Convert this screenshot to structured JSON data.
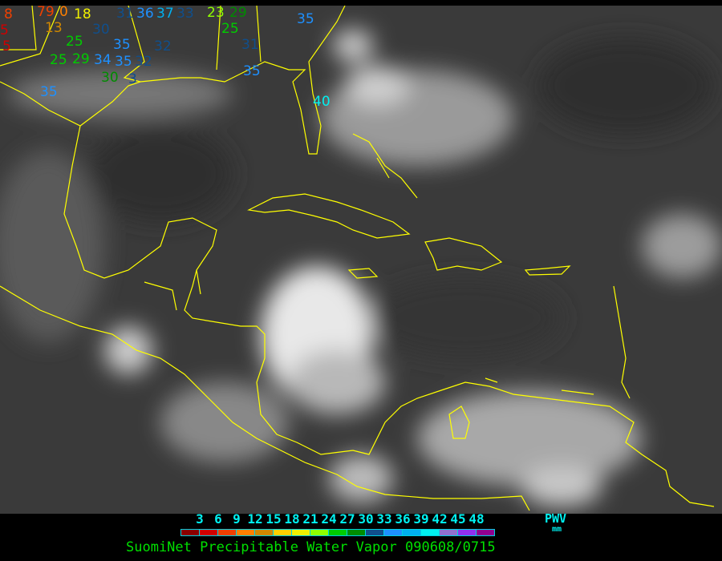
{
  "legend": {
    "values": [
      "3",
      "6",
      "9",
      "12",
      "15",
      "18",
      "21",
      "24",
      "27",
      "30",
      "33",
      "36",
      "39",
      "42",
      "45",
      "48"
    ],
    "colors": [
      "#8b0000",
      "#d00000",
      "#f04000",
      "#ff8000",
      "#d08800",
      "#ffd000",
      "#f0f000",
      "#90ff00",
      "#00cc00",
      "#008c00",
      "#104f8c",
      "#1e90ff",
      "#00b0f0",
      "#00f0f0",
      "#9070d0",
      "#9030f0",
      "#900090"
    ],
    "unit_title": "PWV",
    "unit": "mm"
  },
  "caption": "SuomiNet Precipitable Water Vapor 090608/0715",
  "coastline_color": "#ffff00",
  "stations": [
    {
      "value": "8",
      "color": "#f04000"
    },
    {
      "value": "5",
      "color": "#d00000"
    },
    {
      "value": "5",
      "color": "#d00000"
    },
    {
      "value": "79",
      "color": "#f04000"
    },
    {
      "value": "0",
      "color": "#ff8000"
    },
    {
      "value": "18",
      "color": "#f0f000"
    },
    {
      "value": "13",
      "color": "#d08800"
    },
    {
      "value": "30",
      "color": "#104f8c"
    },
    {
      "value": "25",
      "color": "#00cc00"
    },
    {
      "value": "29",
      "color": "#00cc00"
    },
    {
      "value": "25",
      "color": "#00cc00"
    },
    {
      "value": "34",
      "color": "#1e90ff"
    },
    {
      "value": "35",
      "color": "#1e90ff"
    },
    {
      "value": "35",
      "color": "#1e90ff"
    },
    {
      "value": "32",
      "color": "#104f8c"
    },
    {
      "value": "30",
      "color": "#008c00"
    },
    {
      "value": "3",
      "color": "#104f8c"
    },
    {
      "value": "35",
      "color": "#1e90ff"
    },
    {
      "value": "31",
      "color": "#104f8c"
    },
    {
      "value": "36",
      "color": "#1e90ff"
    },
    {
      "value": "37",
      "color": "#00b0f0"
    },
    {
      "value": "33",
      "color": "#104f8c"
    },
    {
      "value": "32",
      "color": "#104f8c"
    },
    {
      "value": "23",
      "color": "#90ff00"
    },
    {
      "value": "25",
      "color": "#00cc00"
    },
    {
      "value": "29",
      "color": "#008c00"
    },
    {
      "value": "31",
      "color": "#104f8c"
    },
    {
      "value": "35",
      "color": "#1e90ff"
    },
    {
      "value": "35",
      "color": "#1e90ff"
    },
    {
      "value": "40",
      "color": "#00f0f0"
    }
  ]
}
